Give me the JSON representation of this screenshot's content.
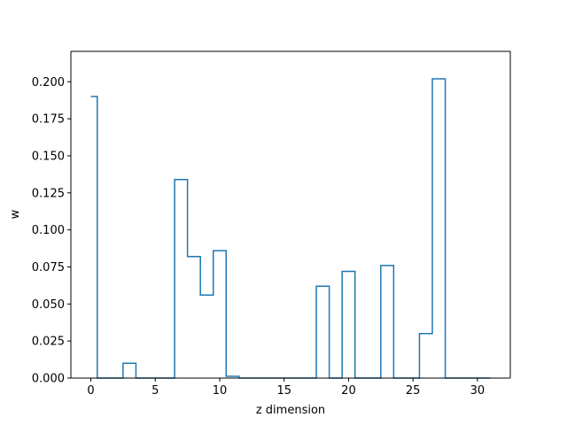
{
  "chart_data": {
    "type": "line",
    "style": "step",
    "title": "",
    "xlabel": "z dimension",
    "ylabel": "w",
    "xlim": [
      -1.55,
      32.55
    ],
    "ylim": [
      0,
      0.2205
    ],
    "x_ticks": [
      0,
      5,
      10,
      15,
      20,
      25,
      30
    ],
    "x_tick_labels": [
      "0",
      "5",
      "10",
      "15",
      "20",
      "25",
      "30"
    ],
    "y_ticks": [
      0,
      0.025,
      0.05,
      0.075,
      0.1,
      0.125,
      0.15,
      0.175,
      0.2
    ],
    "y_tick_labels": [
      "0.000",
      "0.025",
      "0.050",
      "0.075",
      "0.100",
      "0.125",
      "0.150",
      "0.175",
      "0.200"
    ],
    "grid": false,
    "line_color": "#1f77b4",
    "x": [
      0,
      1,
      2,
      3,
      4,
      5,
      6,
      7,
      8,
      9,
      10,
      11,
      12,
      13,
      14,
      15,
      16,
      17,
      18,
      19,
      20,
      21,
      22,
      23,
      24,
      25,
      26,
      27,
      28,
      29,
      30,
      31
    ],
    "values": [
      0.19,
      0,
      0,
      0.01,
      0,
      0,
      0,
      0.134,
      0.082,
      0.056,
      0.086,
      0.0012,
      0,
      0,
      0,
      0,
      0,
      0,
      0.062,
      0,
      0.072,
      0,
      0,
      0.076,
      0,
      0,
      0.03,
      0.202,
      0,
      0,
      0,
      0
    ]
  }
}
